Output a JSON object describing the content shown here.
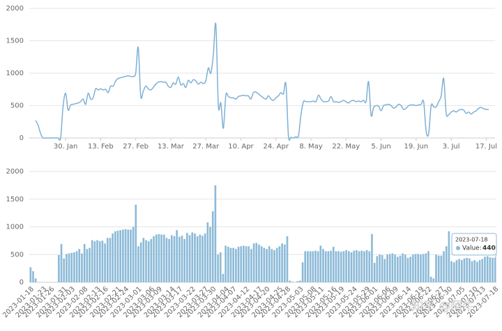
{
  "chart_data": [
    {
      "type": "line",
      "color": "#7eb0d5",
      "grid": true,
      "ylim": [
        0,
        2000
      ],
      "yticks": [
        0,
        500,
        1000,
        1500,
        2000
      ],
      "categories": [
        null,
        null,
        null,
        null,
        null,
        null,
        null,
        null,
        null,
        null,
        null,
        null,
        "30. Jan",
        null,
        null,
        null,
        null,
        null,
        null,
        null,
        null,
        null,
        null,
        null,
        null,
        null,
        "13. Feb",
        null,
        null,
        null,
        null,
        null,
        null,
        null,
        null,
        null,
        null,
        null,
        null,
        null,
        "27. Feb",
        null,
        null,
        null,
        null,
        null,
        null,
        null,
        null,
        null,
        null,
        null,
        null,
        null,
        "13. Mar",
        null,
        null,
        null,
        null,
        null,
        null,
        null,
        null,
        null,
        null,
        null,
        null,
        null,
        "27. Mar",
        null,
        null,
        null,
        null,
        null,
        null,
        null,
        null,
        null,
        null,
        null,
        null,
        null,
        "10. Apr",
        null,
        null,
        null,
        null,
        null,
        null,
        null,
        null,
        null,
        null,
        null,
        null,
        null,
        "24. Apr",
        null,
        null,
        null,
        null,
        null,
        null,
        null,
        null,
        null,
        null,
        null,
        null,
        null,
        "8. May",
        null,
        null,
        null,
        null,
        null,
        null,
        null,
        null,
        null,
        null,
        null,
        null,
        null,
        "22. May",
        null,
        null,
        null,
        null,
        null,
        null,
        null,
        null,
        null,
        null,
        null,
        null,
        null,
        "5. Jun",
        null,
        null,
        null,
        null,
        null,
        null,
        null,
        null,
        null,
        null,
        null,
        null,
        null,
        "19. Jun",
        null,
        null,
        null,
        null,
        null,
        null,
        null,
        null,
        null,
        null,
        null,
        null,
        null,
        "3. Jul",
        null,
        null,
        null,
        null,
        null,
        null,
        null,
        null,
        null,
        null,
        null,
        null,
        null,
        "17. Jul",
        null
      ],
      "values": [
        270,
        200,
        70,
        0,
        0,
        0,
        0,
        0,
        0,
        0,
        0,
        490,
        690,
        430,
        510,
        520,
        530,
        540,
        560,
        600,
        520,
        690,
        600,
        620,
        760,
        740,
        760,
        740,
        750,
        700,
        800,
        800,
        880,
        920,
        930,
        940,
        950,
        960,
        950,
        950,
        1000,
        1400,
        650,
        720,
        800,
        760,
        740,
        780,
        830,
        860,
        870,
        860,
        860,
        800,
        780,
        850,
        830,
        940,
        820,
        840,
        780,
        890,
        850,
        900,
        880,
        830,
        860,
        840,
        880,
        1080,
        1000,
        1280,
        1750,
        500,
        540,
        150,
        660,
        640,
        620,
        620,
        600,
        640,
        650,
        660,
        650,
        650,
        600,
        700,
        710,
        680,
        650,
        620,
        600,
        650,
        600,
        580,
        620,
        650,
        700,
        680,
        830,
        30,
        10,
        0,
        20,
        30,
        360,
        560,
        560,
        560,
        560,
        570,
        560,
        660,
        600,
        560,
        560,
        570,
        640,
        560,
        560,
        550,
        560,
        580,
        560,
        540,
        570,
        580,
        560,
        570,
        560,
        580,
        560,
        870,
        350,
        470,
        500,
        490,
        420,
        500,
        510,
        520,
        500,
        460,
        480,
        520,
        500,
        440,
        460,
        500,
        510,
        510,
        500,
        510,
        520,
        560,
        100,
        70,
        500,
        480,
        480,
        560,
        650,
        920,
        380,
        360,
        400,
        420,
        400,
        430,
        440,
        430,
        380,
        400,
        370,
        400,
        420,
        460,
        470,
        450,
        440,
        440
      ]
    },
    {
      "type": "bar",
      "color": "#8cbad8",
      "grid": true,
      "ylim": [
        0,
        2000
      ],
      "yticks": [
        0,
        500,
        1000,
        1500,
        2000
      ],
      "categories": [
        "2023-01-18",
        null,
        null,
        null,
        null,
        "2023-01-23",
        null,
        null,
        "2023-01-26",
        null,
        null,
        null,
        null,
        "2023-01-31",
        null,
        null,
        "2023-02-03",
        null,
        null,
        null,
        null,
        "2023-02-08",
        null,
        null,
        null,
        null,
        "2023-02-13",
        null,
        null,
        "2023-02-16",
        null,
        null,
        null,
        null,
        "2023-02-21",
        null,
        null,
        "2023-02-24",
        null,
        null,
        null,
        null,
        "2023-03-01",
        null,
        null,
        null,
        null,
        "2023-03-06",
        null,
        null,
        "2023-03-09",
        null,
        null,
        null,
        null,
        "2023-03-14",
        null,
        null,
        "2023-03-17",
        null,
        null,
        null,
        null,
        "2023-03-22",
        null,
        null,
        null,
        null,
        "2023-03-27",
        null,
        null,
        "2023-03-30",
        null,
        null,
        null,
        null,
        "2023-04-04",
        null,
        null,
        "2023-04-07",
        null,
        null,
        null,
        null,
        "2023-04-12",
        null,
        null,
        null,
        null,
        "2023-04-17",
        null,
        null,
        "2023-04-20",
        null,
        null,
        null,
        null,
        "2023-04-25",
        null,
        null,
        "2023-04-28",
        null,
        null,
        null,
        null,
        "2023-05-03",
        null,
        null,
        null,
        null,
        "2023-05-08",
        null,
        null,
        "2023-05-11",
        null,
        null,
        null,
        null,
        "2023-05-16",
        null,
        null,
        "2023-05-19",
        null,
        null,
        null,
        null,
        "2023-05-24",
        null,
        null,
        null,
        null,
        "2023-05-29",
        null,
        null,
        "2023-06-01",
        null,
        null,
        null,
        null,
        "2023-06-06",
        null,
        null,
        "2023-06-09",
        null,
        null,
        null,
        null,
        "2023-06-14",
        null,
        null,
        null,
        null,
        "2023-06-19",
        null,
        null,
        "2023-06-22",
        null,
        null,
        null,
        null,
        "2023-06-27",
        null,
        null,
        "2023-06-30",
        null,
        null,
        null,
        null,
        "2023-07-05",
        null,
        null,
        null,
        null,
        "2023-07-10",
        null,
        null,
        "2023-07-13",
        null,
        null,
        null,
        null,
        "2023-07-18"
      ],
      "values": [
        270,
        200,
        70,
        0,
        0,
        0,
        0,
        0,
        0,
        0,
        0,
        490,
        690,
        430,
        510,
        520,
        530,
        540,
        560,
        600,
        520,
        690,
        600,
        620,
        760,
        740,
        760,
        740,
        750,
        700,
        800,
        800,
        880,
        920,
        930,
        940,
        950,
        960,
        950,
        950,
        1000,
        1400,
        650,
        720,
        800,
        760,
        740,
        780,
        830,
        860,
        870,
        860,
        860,
        800,
        780,
        850,
        830,
        940,
        820,
        840,
        780,
        890,
        850,
        900,
        880,
        830,
        860,
        840,
        880,
        1080,
        1000,
        1280,
        1750,
        500,
        540,
        150,
        660,
        640,
        620,
        620,
        600,
        640,
        650,
        660,
        650,
        650,
        600,
        700,
        710,
        680,
        650,
        620,
        600,
        650,
        600,
        580,
        620,
        650,
        700,
        680,
        830,
        30,
        10,
        0,
        20,
        30,
        360,
        560,
        560,
        560,
        560,
        570,
        560,
        660,
        600,
        560,
        560,
        570,
        640,
        560,
        560,
        550,
        560,
        580,
        560,
        540,
        570,
        580,
        560,
        570,
        560,
        580,
        560,
        870,
        350,
        470,
        500,
        490,
        420,
        500,
        510,
        520,
        500,
        460,
        480,
        520,
        500,
        440,
        460,
        500,
        510,
        510,
        500,
        510,
        520,
        560,
        100,
        70,
        500,
        480,
        480,
        560,
        650,
        920,
        380,
        360,
        400,
        420,
        400,
        430,
        440,
        430,
        380,
        400,
        370,
        400,
        420,
        460,
        470,
        450,
        440,
        440
      ],
      "tooltip": {
        "date": "2023-07-18",
        "label": "Value:",
        "value": 440
      },
      "watermark": "知乎 @阿牛"
    }
  ]
}
